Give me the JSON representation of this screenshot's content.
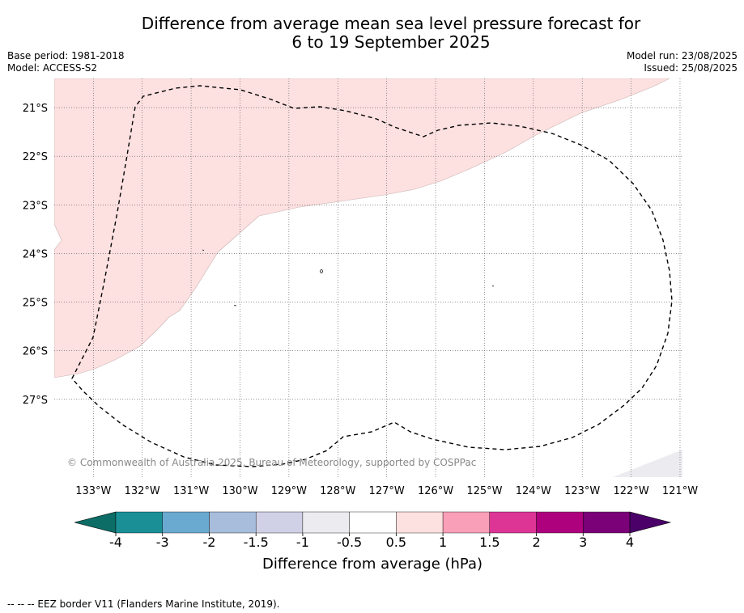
{
  "title": {
    "line1": "Difference from average mean sea level pressure forecast for",
    "line2": "6 to 19 September 2025"
  },
  "meta": {
    "base_period": "Base period: 1981-2018",
    "model": "Model: ACCESS-S2",
    "model_run": "Model run: 23/08/2025",
    "issued": "Issued: 25/08/2025"
  },
  "map": {
    "lon_range": [
      -133.8,
      -120.95
    ],
    "lat_range": [
      -28.6,
      -20.4
    ],
    "lon_ticks": [
      "133°W",
      "132°W",
      "131°W",
      "130°W",
      "129°W",
      "128°W",
      "127°W",
      "126°W",
      "125°W",
      "124°W",
      "123°W",
      "122°W",
      "121°W"
    ],
    "lat_ticks": [
      "21°S",
      "22°S",
      "23°S",
      "24°S",
      "25°S",
      "26°S",
      "27°S"
    ],
    "grid": true,
    "copyright": "© Commonwealth of Australia 2025, Bureau of Meteorology, supported by COSPPac",
    "colors": {
      "anomaly_0_5_to_1": "#fde0e0",
      "anomaly_neg0_5_to_0_5": "#ffffff",
      "anomaly_neg1_to_neg0_5": "#ecebef",
      "eez_border": "#000000"
    }
  },
  "colorbar": {
    "label": "Difference from average (hPa)",
    "ticks": [
      "-4",
      "-3",
      "-2",
      "-1.5",
      "-1",
      "-0.5",
      "0.5",
      "1",
      "1.5",
      "2",
      "3",
      "4"
    ],
    "colors": {
      "below": "#0b6d66",
      "bins": [
        "#1a8f96",
        "#6aaad0",
        "#a7bddb",
        "#d0d1e6",
        "#ecebef",
        "#ffffff",
        "#fde0e0",
        "#f99fb7",
        "#dd3596",
        "#ad017e",
        "#7a0177"
      ],
      "above": "#4a0068"
    }
  },
  "footnote": "-- -- -- EEZ border V11 (Flanders Marine Institute, 2019)."
}
